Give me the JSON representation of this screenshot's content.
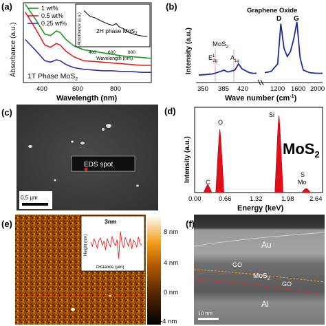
{
  "panels": {
    "a": {
      "label": "(a)",
      "legend": [
        "1   wt%",
        "0.5  wt%",
        "0.25 wt%"
      ],
      "legend_colors": [
        "#1a9a1a",
        "#e0201c",
        "#2b2fa8"
      ],
      "ylabel": "Absorbance  (a.u.)",
      "xlabel": "Wavelength  (nm)",
      "xticks": [
        "400",
        "600",
        "800"
      ],
      "annotation": "1T Phase MoS",
      "annotation_sub": "2",
      "inset": {
        "title": "2H phase MoS",
        "title_sub": "2",
        "ylabel": "Absorbance (a.u.)",
        "xlabel": "Wavelength (nm)",
        "xticks": [
          "400",
          "600",
          "800"
        ]
      }
    },
    "b": {
      "label": "(b)",
      "ylabel": "Intensity  (a.u.)",
      "xlabel": "Wave number (cm",
      "xlabel_sup": "-1",
      "xlabel_end": ")",
      "xticks": [
        "350",
        "385",
        "420",
        "1200",
        "1600",
        "2000"
      ],
      "annotations": {
        "graphene": "Graphene Oxide",
        "d": "D",
        "g": "G",
        "mos2": "MoS",
        "mos2_sub": "2",
        "e": "E",
        "e_sup": "1",
        "e_sub": "2g",
        "a": "A",
        "a_sub": "1g"
      }
    },
    "c": {
      "label": "(c)",
      "spot_label": "EDS spot",
      "scale_label": "0.5  μm"
    },
    "d": {
      "label": "(d)",
      "ylabel": "Intensity  (a.u.)",
      "xlabel": "Energy  (keV)",
      "xticks": [
        "0.00",
        "0.66",
        "1.32",
        "1.98",
        "2.64"
      ],
      "big_label": "MoS",
      "big_label_sub": "2",
      "peaks": [
        "C",
        "O",
        "Si",
        "S",
        "Mo"
      ]
    },
    "e": {
      "label": "(e)",
      "inset_title": "3nm",
      "inset_ylabel": "Height (nm)",
      "inset_xlabel": "Distance  (μm)",
      "colorbar_ticks": [
        "8  nm",
        "4  nm",
        "0  nm",
        "-4  nm"
      ]
    },
    "f": {
      "label": "(f)",
      "labels": [
        "Au",
        "GO",
        "MoS",
        "GO",
        "Al"
      ],
      "mos_sub": "2",
      "scale_label": "10  nm"
    }
  },
  "chart_data": [
    {
      "type": "line",
      "panel": "a",
      "xlabel": "Wavelength  (nm)",
      "ylabel": "Absorbance  (a.u.)",
      "xlim": [
        240,
        900
      ],
      "x": [
        250,
        300,
        350,
        380,
        410,
        430,
        460,
        500,
        550,
        600,
        650,
        700,
        750,
        800,
        850,
        900
      ],
      "series": [
        {
          "name": "1   wt%",
          "values": [
            1.0,
            0.82,
            0.62,
            0.6,
            0.66,
            0.64,
            0.55,
            0.47,
            0.42,
            0.4,
            0.38,
            0.36,
            0.34,
            0.33,
            0.32,
            0.31
          ]
        },
        {
          "name": "0.5  wt%",
          "values": [
            0.9,
            0.7,
            0.48,
            0.45,
            0.5,
            0.48,
            0.4,
            0.33,
            0.28,
            0.27,
            0.26,
            0.25,
            0.24,
            0.23,
            0.22,
            0.22
          ]
        },
        {
          "name": "0.25 wt%",
          "values": [
            0.55,
            0.42,
            0.28,
            0.26,
            0.29,
            0.28,
            0.23,
            0.19,
            0.17,
            0.16,
            0.15,
            0.15,
            0.14,
            0.14,
            0.13,
            0.13
          ]
        }
      ]
    },
    {
      "type": "line",
      "panel": "a-inset",
      "title": "2H phase MoS2",
      "xlabel": "Wavelength (nm)",
      "ylabel": "Absorbance (a.u.)",
      "x": [
        350,
        400,
        450,
        500,
        550,
        600,
        630,
        660,
        690,
        720,
        750,
        800,
        850,
        900
      ],
      "values": [
        0.9,
        0.75,
        0.7,
        0.62,
        0.55,
        0.5,
        0.55,
        0.45,
        0.42,
        0.36,
        0.3,
        0.25,
        0.22,
        0.2
      ]
    },
    {
      "type": "line",
      "panel": "b",
      "xlabel": "Wave number (cm-1)",
      "ylabel": "Intensity  (a.u.)",
      "x": [
        350,
        360,
        370,
        380,
        385,
        390,
        400,
        405,
        410,
        420,
        425,
        430,
        1100,
        1200,
        1300,
        1350,
        1400,
        1450,
        1500,
        1550,
        1600,
        1650,
        1700,
        1800,
        1900,
        2000
      ],
      "values": [
        0.12,
        0.13,
        0.14,
        0.18,
        0.2,
        0.17,
        0.2,
        0.3,
        0.22,
        0.16,
        0.15,
        0.15,
        0.16,
        0.18,
        0.3,
        0.95,
        0.55,
        0.42,
        0.5,
        0.7,
        0.98,
        0.4,
        0.2,
        0.16,
        0.15,
        0.15
      ]
    },
    {
      "type": "area",
      "panel": "d",
      "xlabel": "Energy  (keV)",
      "ylabel": "Intensity  (a.u.)",
      "xlim": [
        0.0,
        2.64
      ],
      "peaks": [
        {
          "label": "C",
          "x": 0.27,
          "y": 0.1
        },
        {
          "label": "O",
          "x": 0.52,
          "y": 0.78
        },
        {
          "label": "Si",
          "x": 1.74,
          "y": 0.95
        },
        {
          "label": "S",
          "x": 2.31,
          "y": 0.05
        },
        {
          "label": "Mo",
          "x": 2.29,
          "y": 0.05
        }
      ]
    },
    {
      "type": "line",
      "panel": "e-inset",
      "title": "3nm",
      "xlabel": "Distance  (μm)",
      "ylabel": "Height (nm)",
      "values": [
        0.2,
        -0.5,
        0.8,
        0.1,
        -0.9,
        0.6,
        1.0,
        -0.3,
        0.4,
        -1.2,
        0.9,
        0.0,
        -0.6,
        1.3,
        0.2,
        -0.4,
        0.7,
        -2.8,
        2.2,
        0.1,
        -0.8,
        1.1,
        0.3,
        -0.5,
        0.9,
        -1.0,
        0.6,
        0.2,
        -0.7,
        1.2,
        0.0,
        -0.3
      ]
    }
  ]
}
